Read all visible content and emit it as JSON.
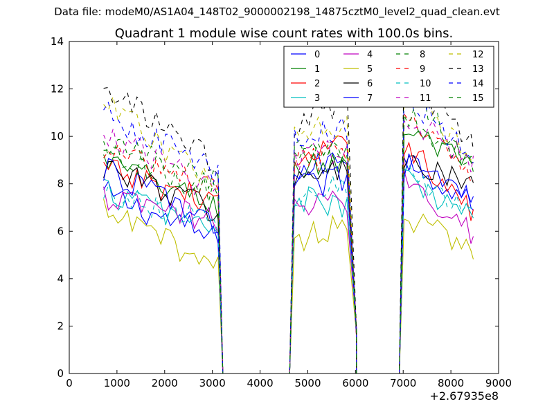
{
  "suptitle": "Data file: modeM0/AS1A04_148T02_9000002198_14875cztM0_level2_quad_clean.evt",
  "chart_data": {
    "type": "line",
    "title": "Quadrant 1 module wise count rates with 100.0s bins.",
    "xlabel": "",
    "ylabel": "",
    "x_offset_label": "+2.67935e8",
    "xlim": [
      0,
      9000
    ],
    "ylim": [
      0,
      14
    ],
    "xticks": [
      0,
      1000,
      2000,
      3000,
      4000,
      5000,
      6000,
      7000,
      8000,
      9000
    ],
    "yticks": [
      0,
      2,
      4,
      6,
      8,
      10,
      12,
      14
    ],
    "grid": false,
    "legend_position": "top-right",
    "legend_columns": 4,
    "segments": [
      {
        "start": 720,
        "end": 3120,
        "bins": 25
      },
      {
        "start": 4720,
        "end": 5820,
        "bins": 12
      },
      {
        "start": 7020,
        "end": 8420,
        "bins": 15
      }
    ],
    "gaps": [
      [
        3220,
        4620
      ],
      [
        6020,
        6920
      ]
    ],
    "edge_points": {
      "segment1_end": 3220,
      "segment2_start": 4620,
      "segment2_end": 6020,
      "segment3_start": 6920,
      "last": 8470
    },
    "series": [
      {
        "name": "0",
        "color": "#0000ff",
        "dash": "solid",
        "seg_levels": [
          7.6,
          5.6
        ],
        "seg2_levels": [
          8.4,
          9.2
        ],
        "seg3_levels": [
          9.2,
          7.2
        ]
      },
      {
        "name": "1",
        "color": "#008000",
        "dash": "solid",
        "seg_levels": [
          9.0,
          7.0
        ],
        "seg2_levels": [
          8.6,
          9.0
        ],
        "seg3_levels": [
          10.4,
          8.6
        ]
      },
      {
        "name": "2",
        "color": "#ff0000",
        "dash": "solid",
        "seg_levels": [
          8.6,
          7.2
        ],
        "seg2_levels": [
          8.8,
          9.6
        ],
        "seg3_levels": [
          9.8,
          6.8
        ]
      },
      {
        "name": "3",
        "color": "#00bfbf",
        "dash": "solid",
        "seg_levels": [
          7.8,
          6.0
        ],
        "seg2_levels": [
          7.4,
          7.0
        ],
        "seg3_levels": [
          8.2,
          6.6
        ]
      },
      {
        "name": "4",
        "color": "#bf00bf",
        "dash": "solid",
        "seg_levels": [
          7.4,
          6.4
        ],
        "seg2_levels": [
          6.9,
          7.4
        ],
        "seg3_levels": [
          8.4,
          6.0
        ]
      },
      {
        "name": "5",
        "color": "#bfbf00",
        "dash": "solid",
        "seg_levels": [
          6.8,
          4.6
        ],
        "seg2_levels": [
          5.6,
          6.4
        ],
        "seg3_levels": [
          6.6,
          5.2
        ]
      },
      {
        "name": "6",
        "color": "#000000",
        "dash": "solid",
        "seg_levels": [
          8.8,
          6.8
        ],
        "seg2_levels": [
          8.2,
          8.6
        ],
        "seg3_levels": [
          9.0,
          7.8
        ]
      },
      {
        "name": "7",
        "color": "#0000ff",
        "dash": "solid",
        "seg_levels": [
          8.6,
          6.4
        ],
        "seg2_levels": [
          7.8,
          8.2
        ],
        "seg3_levels": [
          8.8,
          7.4
        ]
      },
      {
        "name": "8",
        "color": "#008000",
        "dash": "dashed",
        "seg_levels": [
          9.8,
          8.0
        ],
        "seg2_levels": [
          9.4,
          9.2
        ],
        "seg3_levels": [
          12.6,
          8.6
        ]
      },
      {
        "name": "9",
        "color": "#ff0000",
        "dash": "dashed",
        "seg_levels": [
          9.4,
          7.8
        ],
        "seg2_levels": [
          8.8,
          9.4
        ],
        "seg3_levels": [
          10.8,
          8.4
        ]
      },
      {
        "name": "10",
        "color": "#00bfbf",
        "dash": "dashed",
        "seg_levels": [
          7.6,
          6.4
        ],
        "seg2_levels": [
          7.6,
          7.8
        ],
        "seg3_levels": [
          8.6,
          6.8
        ]
      },
      {
        "name": "11",
        "color": "#bf00bf",
        "dash": "dashed",
        "seg_levels": [
          10.2,
          7.6
        ],
        "seg2_levels": [
          9.0,
          9.6
        ],
        "seg3_levels": [
          11.0,
          9.0
        ]
      },
      {
        "name": "12",
        "color": "#bfbf00",
        "dash": "dashed",
        "seg_levels": [
          11.4,
          7.8
        ],
        "seg2_levels": [
          10.4,
          10.6
        ],
        "seg3_levels": [
          12.4,
          9.0
        ]
      },
      {
        "name": "13",
        "color": "#000000",
        "dash": "dashed",
        "seg_levels": [
          12.0,
          8.8
        ],
        "seg2_levels": [
          10.4,
          11.6
        ],
        "seg3_levels": [
          13.0,
          9.6
        ]
      },
      {
        "name": "14",
        "color": "#0000ff",
        "dash": "dashed",
        "seg_levels": [
          11.0,
          8.4
        ],
        "seg2_levels": [
          9.8,
          10.4
        ],
        "seg3_levels": [
          11.8,
          9.2
        ]
      },
      {
        "name": "15",
        "color": "#008000",
        "dash": "dashed",
        "seg_levels": [
          9.6,
          7.4
        ],
        "seg2_levels": [
          9.2,
          9.4
        ],
        "seg3_levels": [
          11.0,
          8.8
        ]
      }
    ]
  }
}
